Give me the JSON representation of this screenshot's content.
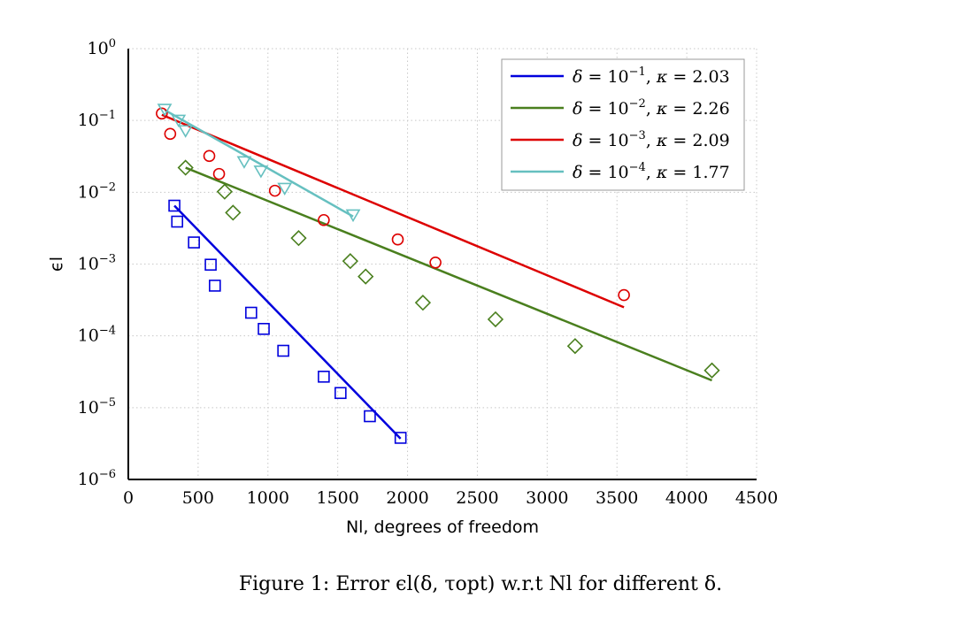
{
  "caption": "Figure 1: Error ϵl(δ, τopt) w.r.t Nl for different δ.",
  "chart_data": {
    "type": "line",
    "xlabel": "Nl, degrees of freedom",
    "ylabel": "ϵl",
    "xlim": [
      0,
      4500
    ],
    "ylim": [
      1e-06,
      1
    ],
    "yscale": "log",
    "grid": true,
    "legend_position": "top-right",
    "x_ticks": [
      "0",
      "500",
      "1000",
      "1500",
      "2000",
      "2500",
      "3000",
      "3500",
      "4000",
      "4500"
    ],
    "y_ticks": [
      {
        "base": "10",
        "exp": "0"
      },
      {
        "base": "10",
        "exp": "−1"
      },
      {
        "base": "10",
        "exp": "−2"
      },
      {
        "base": "10",
        "exp": "−3"
      },
      {
        "base": "10",
        "exp": "−4"
      },
      {
        "base": "10",
        "exp": "−5"
      },
      {
        "base": "10",
        "exp": "−6"
      }
    ],
    "series": [
      {
        "name": "δ = 10−1, κ = 2.03",
        "color": "#0000dd",
        "marker": "square",
        "points": [
          [
            330,
            0.0065
          ],
          [
            350,
            0.0039
          ],
          [
            470,
            0.002
          ],
          [
            590,
            0.00098
          ],
          [
            620,
            0.0005
          ],
          [
            880,
            0.00021
          ],
          [
            970,
            0.000125
          ],
          [
            1110,
            6.2e-05
          ],
          [
            1400,
            2.7e-05
          ],
          [
            1520,
            1.6e-05
          ],
          [
            1730,
            7.6e-06
          ],
          [
            1950,
            3.8e-06
          ]
        ],
        "fit": [
          [
            330,
            0.0065
          ],
          [
            1950,
            3.7e-06
          ]
        ]
      },
      {
        "name": "δ = 10−2, κ = 2.26",
        "color": "#4a7f1e",
        "marker": "diamond",
        "points": [
          [
            410,
            0.022
          ],
          [
            690,
            0.0102
          ],
          [
            750,
            0.0052
          ],
          [
            1220,
            0.0023
          ],
          [
            1590,
            0.0011
          ],
          [
            1700,
            0.00067
          ],
          [
            2110,
            0.00029
          ],
          [
            2630,
            0.00017
          ],
          [
            3200,
            7.2e-05
          ],
          [
            4180,
            3.3e-05
          ]
        ],
        "fit": [
          [
            410,
            0.022
          ],
          [
            4180,
            2.4e-05
          ]
        ]
      },
      {
        "name": "δ = 10−3, κ = 2.09",
        "color": "#dd0000",
        "marker": "circle",
        "points": [
          [
            240,
            0.125
          ],
          [
            300,
            0.065
          ],
          [
            580,
            0.032
          ],
          [
            650,
            0.018
          ],
          [
            1050,
            0.0105
          ],
          [
            1400,
            0.0041
          ],
          [
            1930,
            0.0022
          ],
          [
            2200,
            0.00105
          ],
          [
            3550,
            0.00037
          ]
        ],
        "fit": [
          [
            240,
            0.12
          ],
          [
            3550,
            0.00025
          ]
        ]
      },
      {
        "name": "δ = 10−4, κ = 1.77",
        "color": "#66c0c0",
        "marker": "triangle-down",
        "points": [
          [
            260,
            0.145
          ],
          [
            360,
            0.102
          ],
          [
            410,
            0.073
          ],
          [
            830,
            0.027
          ],
          [
            950,
            0.02
          ],
          [
            1120,
            0.0115
          ],
          [
            1610,
            0.0049
          ]
        ],
        "fit": [
          [
            260,
            0.14
          ],
          [
            1610,
            0.0046
          ]
        ]
      }
    ],
    "legend": [
      {
        "delta_exp": "−1",
        "kappa": "2.03"
      },
      {
        "delta_exp": "−2",
        "kappa": "2.26"
      },
      {
        "delta_exp": "−3",
        "kappa": "2.09"
      },
      {
        "delta_exp": "−4",
        "kappa": "1.77"
      }
    ]
  }
}
